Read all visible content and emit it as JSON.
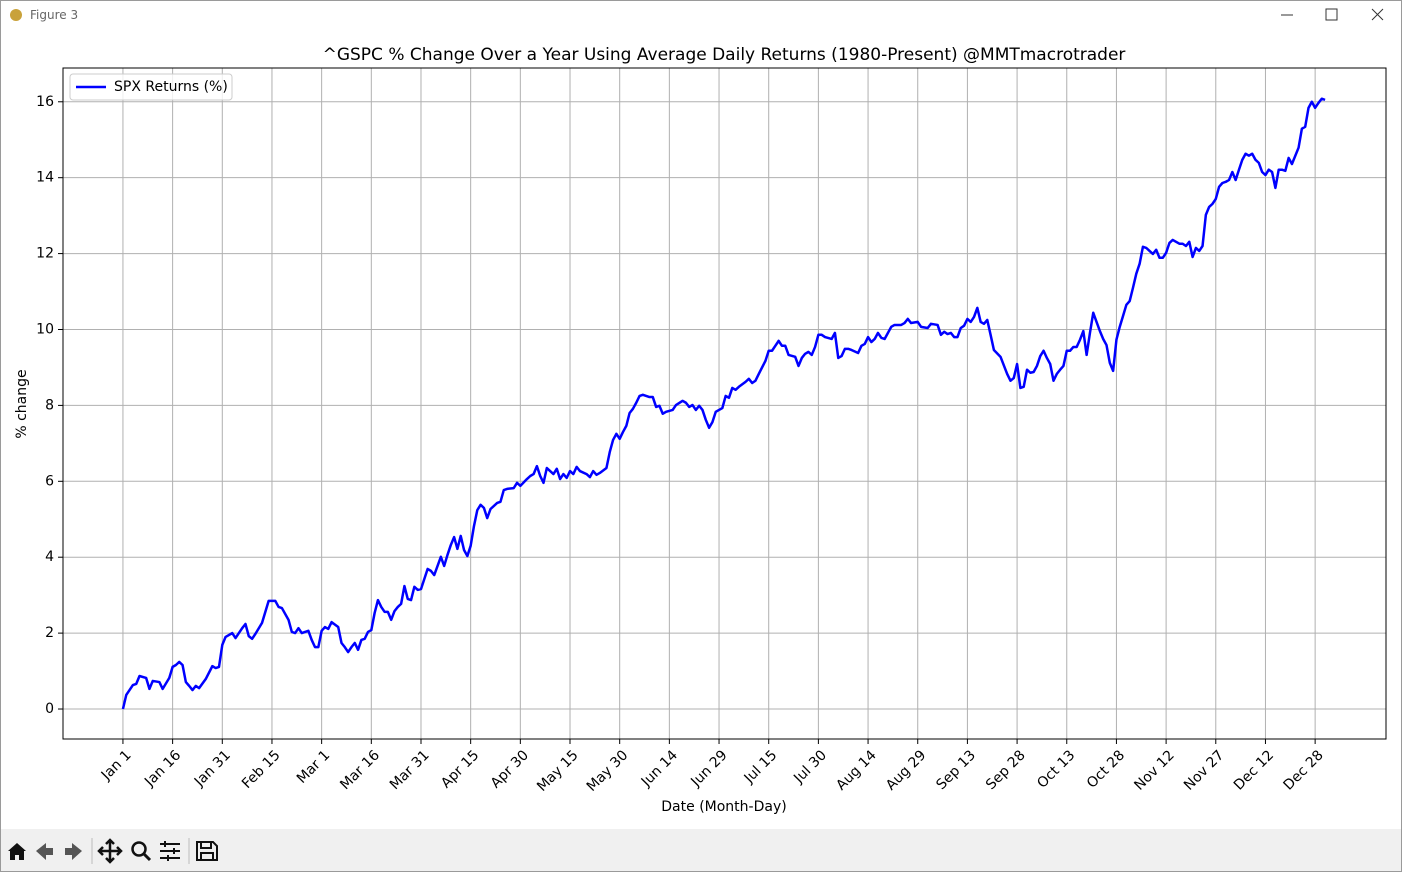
{
  "window": {
    "title": "Figure 3"
  },
  "chart_data": {
    "type": "line",
    "title": "^GSPC % Change Over a Year Using Average Daily Returns (1980-Present) @MMTmacrotrader",
    "x_label": "Date (Month-Day)",
    "y_label": "% change",
    "legend": "upper left",
    "grid": true,
    "xlim": [
      -18.1,
      381.4
    ],
    "ylim": [
      -0.79,
      16.89
    ],
    "xticks": [
      {
        "value": 0,
        "label": "Jan 1"
      },
      {
        "value": 15,
        "label": "Jan 16"
      },
      {
        "value": 30,
        "label": "Jan 31"
      },
      {
        "value": 45,
        "label": "Feb 15"
      },
      {
        "value": 60,
        "label": "Mar 1"
      },
      {
        "value": 75,
        "label": "Mar 16"
      },
      {
        "value": 90,
        "label": "Mar 31"
      },
      {
        "value": 105,
        "label": "Apr 15"
      },
      {
        "value": 120,
        "label": "Apr 30"
      },
      {
        "value": 135,
        "label": "May 15"
      },
      {
        "value": 150,
        "label": "May 30"
      },
      {
        "value": 165,
        "label": "Jun 14"
      },
      {
        "value": 180,
        "label": "Jun 29"
      },
      {
        "value": 195,
        "label": "Jul 15"
      },
      {
        "value": 210,
        "label": "Jul 30"
      },
      {
        "value": 225,
        "label": "Aug 14"
      },
      {
        "value": 240,
        "label": "Aug 29"
      },
      {
        "value": 255,
        "label": "Sep 13"
      },
      {
        "value": 270,
        "label": "Sep 28"
      },
      {
        "value": 285,
        "label": "Oct 13"
      },
      {
        "value": 300,
        "label": "Oct 28"
      },
      {
        "value": 315,
        "label": "Nov 12"
      },
      {
        "value": 330,
        "label": "Nov 27"
      },
      {
        "value": 345,
        "label": "Dec 12"
      },
      {
        "value": 360,
        "label": "Dec 28"
      }
    ],
    "yticks": [
      0,
      2,
      4,
      6,
      8,
      10,
      12,
      14,
      16
    ],
    "series": [
      {
        "name": "SPX Returns (%)",
        "color": "#0000ff",
        "x": [
          0,
          1,
          3,
          4,
          5,
          7,
          8,
          9,
          11,
          12,
          14,
          15,
          16,
          17,
          18,
          19,
          20,
          21,
          22,
          23,
          25,
          27,
          28,
          29,
          30,
          31,
          33,
          34,
          36,
          37,
          38,
          39,
          40,
          42,
          43,
          44,
          46,
          47,
          48,
          50,
          51,
          52,
          53,
          54,
          56,
          57,
          58,
          59,
          60,
          61,
          62,
          63,
          65,
          66,
          67,
          68,
          69,
          70,
          71,
          72,
          73,
          74,
          75,
          76,
          77,
          78,
          79,
          80,
          81,
          82,
          83,
          84,
          85,
          86,
          87,
          88,
          89,
          90,
          92,
          93,
          94,
          95,
          96,
          97,
          98,
          99,
          100,
          101,
          102,
          103,
          104,
          105,
          106,
          107,
          108,
          109,
          110,
          111,
          113,
          114,
          115,
          116,
          118,
          119,
          120,
          122,
          123,
          124,
          125,
          126,
          127,
          128,
          130,
          131,
          132,
          133,
          134,
          135,
          136,
          137,
          138,
          140,
          141,
          142,
          143,
          144,
          146,
          147,
          148,
          149,
          150,
          151,
          152,
          153,
          154,
          155,
          156,
          157,
          159,
          160,
          161,
          162,
          163,
          164,
          166,
          167,
          169,
          170,
          171,
          172,
          173,
          174,
          175,
          176,
          177,
          178,
          179,
          181,
          182,
          183,
          184,
          185,
          186,
          188,
          189,
          190,
          191,
          192,
          194,
          195,
          196,
          197,
          198,
          199,
          200,
          201,
          203,
          204,
          205,
          206,
          207,
          208,
          209,
          210,
          211,
          212,
          214,
          215,
          216,
          217,
          218,
          219,
          220,
          222,
          223,
          224,
          225,
          226,
          227,
          228,
          229,
          230,
          232,
          233,
          235,
          236,
          237,
          238,
          240,
          241,
          243,
          244,
          246,
          247,
          248,
          249,
          250,
          251,
          252,
          253,
          254,
          255,
          256,
          257,
          258,
          259,
          260,
          261,
          262,
          263,
          265,
          267,
          268,
          269,
          270,
          271,
          272,
          273,
          274,
          275,
          276,
          277,
          278,
          279,
          280,
          281,
          282,
          283,
          284,
          285,
          286,
          287,
          288,
          289,
          290,
          291,
          292,
          293,
          294,
          295,
          296,
          297,
          298,
          299,
          300,
          301,
          302,
          303,
          304,
          305,
          306,
          307,
          308,
          309,
          310,
          311,
          312,
          313,
          314,
          315,
          316,
          317,
          319,
          320,
          321,
          322,
          323,
          324,
          325,
          326,
          327,
          328,
          329,
          330,
          331,
          332,
          333,
          334,
          335,
          336,
          337,
          338,
          339,
          340,
          341,
          342,
          343,
          344,
          345,
          346,
          347,
          348,
          349,
          350,
          351,
          352,
          353,
          355,
          356,
          357,
          358,
          359,
          360,
          361,
          362,
          363
        ],
        "values": [
          0,
          0.37,
          0.63,
          0.66,
          0.87,
          0.82,
          0.53,
          0.74,
          0.71,
          0.53,
          0.82,
          1.11,
          1.16,
          1.24,
          1.16,
          0.71,
          0.61,
          0.5,
          0.61,
          0.55,
          0.79,
          1.13,
          1.08,
          1.11,
          1.69,
          1.9,
          2.0,
          1.87,
          2.13,
          2.24,
          1.92,
          1.85,
          1.98,
          2.27,
          2.56,
          2.85,
          2.85,
          2.69,
          2.66,
          2.35,
          2.03,
          2.0,
          2.13,
          2.0,
          2.06,
          1.82,
          1.63,
          1.63,
          2.06,
          2.16,
          2.11,
          2.29,
          2.16,
          1.74,
          1.63,
          1.5,
          1.63,
          1.74,
          1.56,
          1.82,
          1.85,
          2.03,
          2.08,
          2.53,
          2.87,
          2.69,
          2.56,
          2.56,
          2.35,
          2.58,
          2.69,
          2.77,
          3.24,
          2.9,
          2.87,
          3.22,
          3.14,
          3.16,
          3.69,
          3.64,
          3.53,
          3.77,
          4.01,
          3.77,
          4.06,
          4.32,
          4.53,
          4.22,
          4.56,
          4.19,
          4.03,
          4.3,
          4.82,
          5.24,
          5.38,
          5.3,
          5.03,
          5.27,
          5.43,
          5.46,
          5.77,
          5.8,
          5.82,
          5.96,
          5.88,
          6.06,
          6.14,
          6.19,
          6.4,
          6.14,
          5.96,
          6.35,
          6.19,
          6.33,
          6.06,
          6.19,
          6.09,
          6.27,
          6.19,
          6.38,
          6.27,
          6.19,
          6.11,
          6.27,
          6.17,
          6.22,
          6.35,
          6.77,
          7.09,
          7.25,
          7.12,
          7.3,
          7.46,
          7.8,
          7.91,
          8.07,
          8.25,
          8.28,
          8.22,
          8.22,
          7.96,
          7.99,
          7.78,
          7.83,
          7.88,
          8.01,
          8.12,
          8.07,
          7.96,
          8.01,
          7.88,
          7.99,
          7.88,
          7.62,
          7.41,
          7.56,
          7.83,
          7.93,
          8.25,
          8.2,
          8.46,
          8.41,
          8.49,
          8.62,
          8.7,
          8.59,
          8.65,
          8.83,
          9.17,
          9.44,
          9.44,
          9.57,
          9.7,
          9.57,
          9.57,
          9.33,
          9.28,
          9.04,
          9.25,
          9.36,
          9.41,
          9.33,
          9.54,
          9.86,
          9.86,
          9.8,
          9.75,
          9.91,
          9.25,
          9.3,
          9.49,
          9.49,
          9.46,
          9.38,
          9.57,
          9.62,
          9.8,
          9.67,
          9.75,
          9.91,
          9.78,
          9.75,
          10.07,
          10.12,
          10.12,
          10.17,
          10.28,
          10.17,
          10.2,
          10.07,
          10.04,
          10.15,
          10.12,
          9.86,
          9.94,
          9.88,
          9.91,
          9.8,
          9.8,
          10.04,
          10.1,
          10.28,
          10.2,
          10.33,
          10.57,
          10.2,
          10.15,
          10.25,
          9.86,
          9.46,
          9.28,
          8.83,
          8.65,
          8.72,
          9.09,
          8.46,
          8.49,
          8.94,
          8.86,
          8.88,
          9.04,
          9.3,
          9.44,
          9.25,
          9.09,
          8.65,
          8.83,
          8.94,
          9.04,
          9.44,
          9.44,
          9.54,
          9.54,
          9.73,
          9.96,
          9.33,
          9.91,
          10.44,
          10.2,
          9.96,
          9.75,
          9.59,
          9.12,
          8.91,
          9.73,
          10.07,
          10.36,
          10.65,
          10.75,
          11.1,
          11.47,
          11.73,
          12.18,
          12.15,
          12.07,
          11.99,
          12.1,
          11.89,
          11.89,
          12.02,
          12.28,
          12.36,
          12.26,
          12.26,
          12.2,
          12.31,
          11.91,
          12.15,
          12.07,
          12.2,
          13.02,
          13.23,
          13.31,
          13.44,
          13.76,
          13.86,
          13.89,
          13.94,
          14.15,
          13.94,
          14.21,
          14.47,
          14.63,
          14.58,
          14.63,
          14.47,
          14.39,
          14.15,
          14.07,
          14.21,
          14.15,
          13.73,
          14.21,
          14.21,
          14.18,
          14.52,
          14.36,
          14.79,
          15.29,
          15.34,
          15.84,
          16.0,
          15.84,
          15.97,
          16.08,
          16.05
        ]
      }
    ]
  }
}
